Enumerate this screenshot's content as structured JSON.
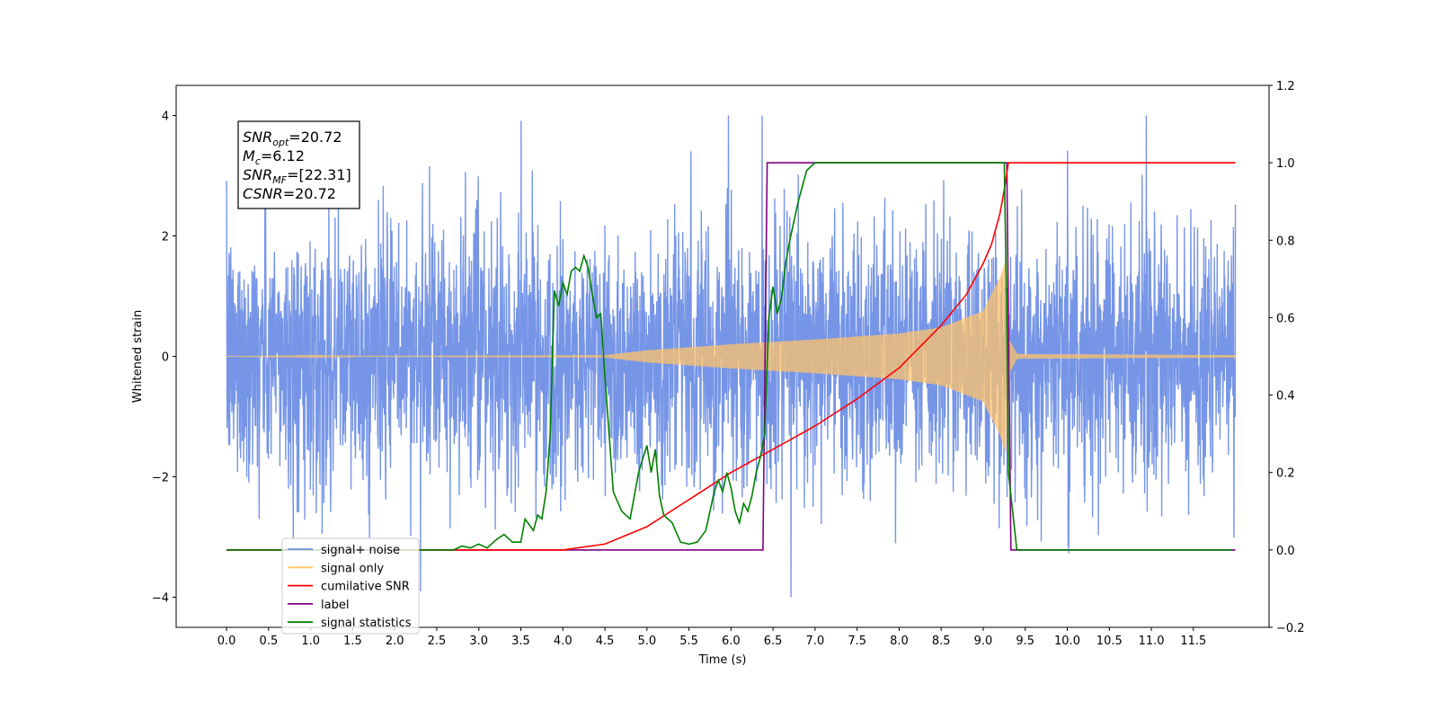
{
  "chart_data": {
    "type": "line",
    "xlabel": "Time (s)",
    "ylabel": "Whitened strain",
    "xlim": [
      -0.6,
      12.4
    ],
    "ylim_left": [
      -4.5,
      4.5
    ],
    "ylim_right": [
      -0.2,
      1.2
    ],
    "x_ticks": [
      "0.0",
      "0.5",
      "1.0",
      "1.5",
      "2.0",
      "2.5",
      "3.0",
      "3.5",
      "4.0",
      "4.5",
      "5.0",
      "5.5",
      "6.0",
      "6.5",
      "7.0",
      "7.5",
      "8.0",
      "8.5",
      "9.0",
      "9.5",
      "10.0",
      "10.5",
      "11.0",
      "11.5"
    ],
    "y_left_ticks": [
      "4",
      "2",
      "0",
      "-2",
      "-4"
    ],
    "y_right_ticks": [
      "1.2",
      "1.0",
      "0.8",
      "0.6",
      "0.4",
      "0.2",
      "0.0",
      "-0.2"
    ],
    "annotation": [
      {
        "base": "SNR",
        "sub": "opt",
        "value": "=20.72"
      },
      {
        "base": "M",
        "sub": "c",
        "value": "=6.12"
      },
      {
        "base": "SNR",
        "sub": "MF",
        "value": "=[22.31]"
      },
      {
        "base": "CSNR",
        "sub": "",
        "value": "=20.72"
      }
    ],
    "legend_position": "lower-left",
    "series": [
      {
        "name": "signal+ noise",
        "axis": "left",
        "color": "#6f8fe6",
        "description_range": [
          -2.8,
          3.0
        ],
        "x_range": [
          0.0,
          12.0
        ]
      },
      {
        "name": "signal only",
        "axis": "left",
        "color": "#ffc36b",
        "envelope": {
          "x": [
            0,
            4.5,
            5.0,
            6.0,
            6.5,
            7.0,
            8.0,
            8.5,
            9.0,
            9.2,
            9.27,
            9.3,
            9.4,
            12.0
          ],
          "amp": [
            0,
            0.02,
            0.1,
            0.2,
            0.24,
            0.28,
            0.38,
            0.48,
            0.75,
            1.3,
            1.6,
            0.3,
            0.04,
            0.02
          ]
        }
      },
      {
        "name": "cumilative SNR",
        "axis": "right",
        "color": "#ff0000",
        "x": [
          0,
          4.0,
          4.5,
          5.0,
          5.5,
          6.0,
          6.5,
          7.0,
          7.5,
          8.0,
          8.5,
          8.8,
          9.0,
          9.1,
          9.2,
          9.25,
          9.3,
          12.0
        ],
        "y": [
          0,
          0.0,
          0.015,
          0.06,
          0.13,
          0.2,
          0.26,
          0.32,
          0.39,
          0.47,
          0.58,
          0.66,
          0.74,
          0.79,
          0.87,
          0.93,
          1.0,
          1.0
        ]
      },
      {
        "name": "label",
        "axis": "right",
        "color": "#800080",
        "x": [
          0,
          6.38,
          6.43,
          9.28,
          9.33,
          12.0
        ],
        "y": [
          0,
          0,
          1.0,
          1.0,
          0,
          0
        ]
      },
      {
        "name": "signal statistics",
        "axis": "right",
        "color": "#008000",
        "x": [
          0,
          0.1,
          2.7,
          2.8,
          2.9,
          3.0,
          3.1,
          3.2,
          3.3,
          3.4,
          3.5,
          3.55,
          3.65,
          3.7,
          3.75,
          3.8,
          3.85,
          3.9,
          3.95,
          4.0,
          4.05,
          4.1,
          4.15,
          4.2,
          4.25,
          4.3,
          4.35,
          4.4,
          4.45,
          4.5,
          4.55,
          4.6,
          4.7,
          4.8,
          4.9,
          5.0,
          5.05,
          5.1,
          5.15,
          5.2,
          5.3,
          5.4,
          5.5,
          5.6,
          5.7,
          5.8,
          5.85,
          5.9,
          5.95,
          6.0,
          6.05,
          6.1,
          6.15,
          6.2,
          6.25,
          6.3,
          6.35,
          6.4,
          6.45,
          6.5,
          6.55,
          6.6,
          6.65,
          6.7,
          6.75,
          6.8,
          6.9,
          7.0,
          7.1,
          7.2,
          7.5,
          9.25,
          9.28,
          9.3,
          9.35,
          9.4,
          11.95
        ],
        "y": [
          0,
          0,
          0.0,
          0.01,
          0.005,
          0.015,
          0.005,
          0.025,
          0.04,
          0.02,
          0.02,
          0.08,
          0.05,
          0.09,
          0.08,
          0.15,
          0.3,
          0.67,
          0.63,
          0.69,
          0.66,
          0.72,
          0.73,
          0.72,
          0.76,
          0.73,
          0.66,
          0.6,
          0.61,
          0.45,
          0.3,
          0.15,
          0.1,
          0.08,
          0.2,
          0.27,
          0.2,
          0.26,
          0.14,
          0.09,
          0.07,
          0.02,
          0.015,
          0.02,
          0.05,
          0.15,
          0.18,
          0.15,
          0.2,
          0.16,
          0.1,
          0.07,
          0.12,
          0.1,
          0.14,
          0.2,
          0.24,
          0.3,
          0.6,
          0.68,
          0.61,
          0.65,
          0.74,
          0.8,
          0.85,
          0.9,
          0.98,
          1.0,
          1.0,
          1.0,
          1.0,
          1.0,
          0.6,
          0.2,
          0.1,
          0.0,
          0.0
        ]
      }
    ]
  }
}
